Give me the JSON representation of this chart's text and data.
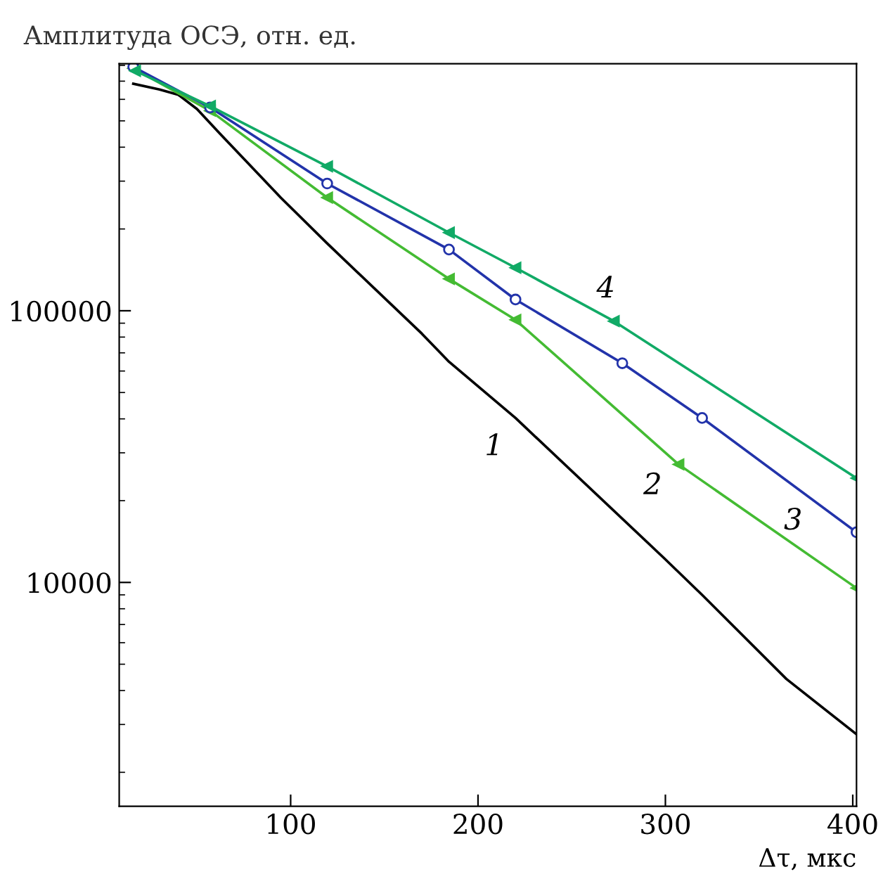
{
  "chart_data": {
    "type": "line",
    "xlabel": "Δτ, мкс",
    "ylabel": "Амплитуда ОСЭ, отн. ед.",
    "xlim": [
      8.5,
      402
    ],
    "xticks": [
      100,
      200,
      300,
      400
    ],
    "ylim": [
      1500,
      811000
    ],
    "yticks": [
      10000,
      100000
    ],
    "log": "y",
    "grid": false,
    "legend": false,
    "line_style": "solid",
    "series": [
      {
        "name": "1",
        "color": "#000000",
        "marker": "none",
        "x": [
          16,
          30,
          40,
          50,
          62.5,
          94.7,
          119.5,
          170,
          184.5,
          220,
          299.5,
          319.6,
          364.6,
          402
        ],
        "values": [
          685000,
          652000,
          624000,
          553000,
          447000,
          261000,
          177000,
          82400,
          64900,
          40300,
          12250,
          9000,
          4410,
          2760
        ]
      },
      {
        "name": "2",
        "color": "#44bb33",
        "marker": "triangle",
        "x": [
          16,
          57,
          119.5,
          184.5,
          220,
          307,
          402
        ],
        "values": [
          780000,
          545000,
          261000,
          131000,
          92600,
          27200,
          9530
        ]
      },
      {
        "name": "3",
        "color": "#2233aa",
        "marker": "circle",
        "x": [
          16,
          57,
          119.5,
          184.5,
          220,
          277,
          319.6,
          402
        ],
        "values": [
          790000,
          560000,
          294000,
          168000,
          110000,
          64100,
          40300,
          15300
        ]
      },
      {
        "name": "4",
        "color": "#11aa66",
        "marker": "triangle",
        "x": [
          17,
          57,
          119.5,
          184.5,
          220,
          272.5,
          402
        ],
        "values": [
          764000,
          567000,
          340000,
          194000,
          144000,
          91600,
          24200
        ]
      }
    ]
  }
}
